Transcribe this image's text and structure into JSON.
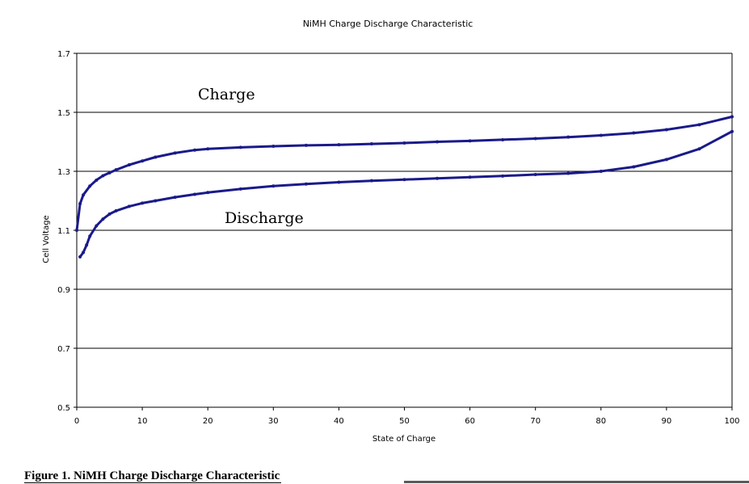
{
  "chart_data": {
    "type": "line",
    "title": "NiMH Charge Discharge Characteristic",
    "xlabel": "State of Charge",
    "ylabel": "Cell Voltage",
    "xlim": [
      0,
      100
    ],
    "ylim": [
      0.5,
      1.7
    ],
    "xticks": [
      0,
      10,
      20,
      30,
      40,
      50,
      60,
      70,
      80,
      90,
      100
    ],
    "yticks": [
      "0.5",
      "0.7",
      "0.9",
      "1.1",
      "1.3",
      "1.5",
      "1.7"
    ],
    "grid": "horizontal",
    "line_color": "#1a1a8a",
    "series": [
      {
        "name": "Charge",
        "x": [
          0,
          0.5,
          1,
          2,
          3,
          4,
          5,
          6,
          8,
          10,
          12,
          15,
          18,
          20,
          25,
          30,
          35,
          40,
          45,
          50,
          55,
          60,
          65,
          70,
          75,
          80,
          85,
          90,
          95,
          100
        ],
        "y": [
          1.1,
          1.19,
          1.22,
          1.25,
          1.27,
          1.285,
          1.295,
          1.305,
          1.322,
          1.335,
          1.348,
          1.362,
          1.372,
          1.376,
          1.381,
          1.385,
          1.388,
          1.39,
          1.393,
          1.396,
          1.4,
          1.403,
          1.407,
          1.411,
          1.416,
          1.422,
          1.43,
          1.441,
          1.458,
          1.485
        ]
      },
      {
        "name": "Discharge",
        "x": [
          0.5,
          1,
          1.5,
          2,
          3,
          4,
          5,
          6,
          8,
          10,
          12,
          15,
          18,
          20,
          25,
          30,
          35,
          40,
          45,
          50,
          55,
          60,
          65,
          70,
          75,
          80,
          85,
          90,
          95,
          100
        ],
        "y": [
          1.01,
          1.025,
          1.05,
          1.08,
          1.115,
          1.138,
          1.155,
          1.166,
          1.181,
          1.192,
          1.2,
          1.212,
          1.222,
          1.228,
          1.24,
          1.25,
          1.257,
          1.263,
          1.268,
          1.272,
          1.276,
          1.28,
          1.284,
          1.289,
          1.293,
          1.3,
          1.315,
          1.34,
          1.376,
          1.435
        ]
      }
    ]
  },
  "caption": "Figure 1.  NiMH Charge Discharge Characteristic"
}
